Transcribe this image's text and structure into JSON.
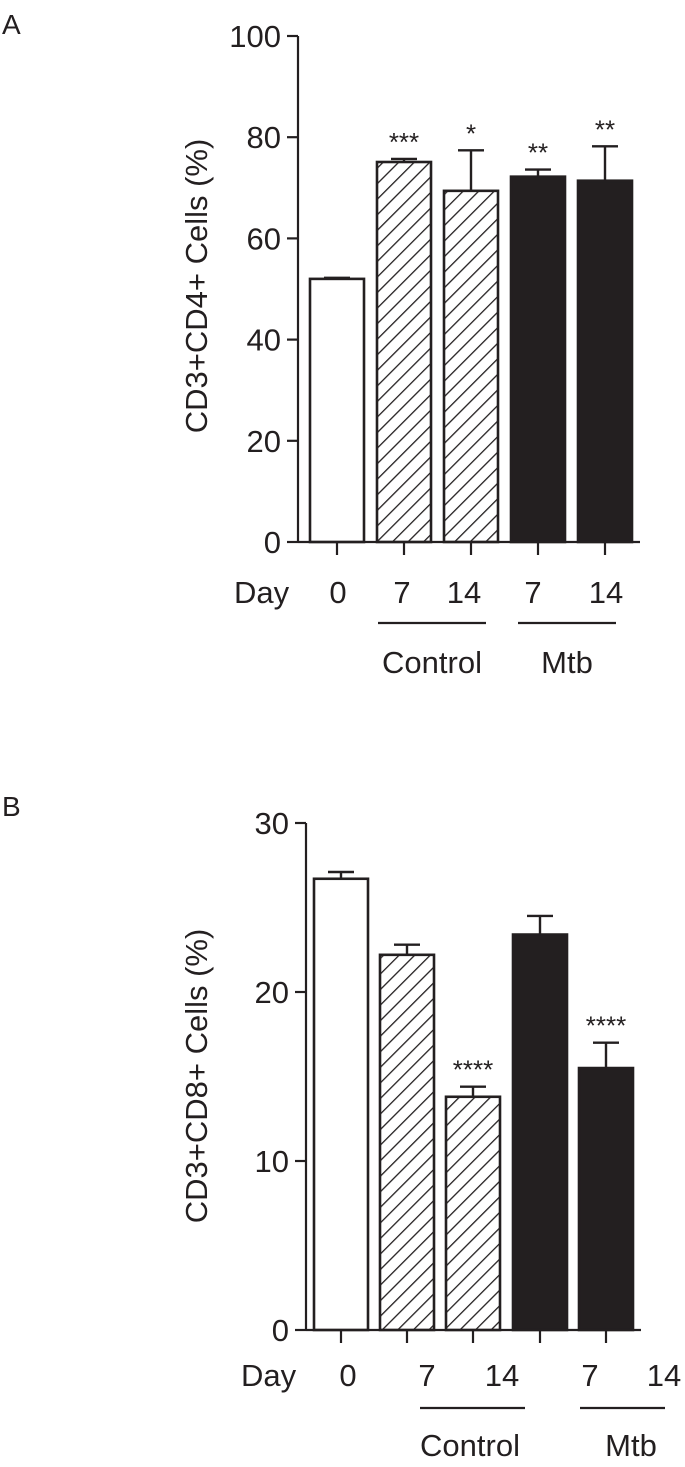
{
  "figure": {
    "panels": [
      "A",
      "B"
    ]
  },
  "chart_data": [
    {
      "panel": "A",
      "type": "bar",
      "categories": [
        "0",
        "7",
        "14",
        "7",
        "14"
      ],
      "values": [
        52,
        75.1,
        69.4,
        72.2,
        71.4
      ],
      "errors": [
        0.2,
        0.6,
        8.0,
        1.4,
        6.8
      ],
      "significance": [
        "",
        "***",
        "*",
        "**",
        "**"
      ],
      "fills": [
        "open",
        "hatched",
        "hatched",
        "solid",
        "solid"
      ],
      "groups": [
        {
          "label": "Control",
          "bars": [
            1,
            2
          ]
        },
        {
          "label": "Mtb",
          "bars": [
            3,
            4
          ]
        }
      ],
      "x_prefix": "Day",
      "ylabel": "CD3+CD4+ Cells (%)",
      "ylim": [
        0,
        100
      ],
      "yticks": [
        "0",
        "20",
        "40",
        "60",
        "80",
        "100"
      ],
      "grid": false,
      "colors": {
        "solid": "#231f20",
        "open": "#ffffff",
        "line": "#231f20"
      }
    },
    {
      "panel": "B",
      "type": "bar",
      "categories": [
        "0",
        "7",
        "14",
        "7",
        "14"
      ],
      "values": [
        26.7,
        22.2,
        13.8,
        23.4,
        15.5
      ],
      "errors": [
        0.4,
        0.6,
        0.6,
        1.1,
        1.5
      ],
      "significance": [
        "",
        "",
        "****",
        "",
        "****"
      ],
      "fills": [
        "open",
        "hatched",
        "hatched",
        "solid",
        "solid"
      ],
      "groups": [
        {
          "label": "Control",
          "bars": [
            1,
            2
          ]
        },
        {
          "label": "Mtb",
          "bars": [
            3,
            4
          ]
        }
      ],
      "x_prefix": "Day",
      "ylabel": "CD3+CD8+ Cells (%)",
      "ylim": [
        0,
        30
      ],
      "yticks": [
        "0",
        "10",
        "20",
        "30"
      ],
      "grid": false,
      "colors": {
        "solid": "#231f20",
        "open": "#ffffff",
        "line": "#231f20"
      }
    }
  ]
}
